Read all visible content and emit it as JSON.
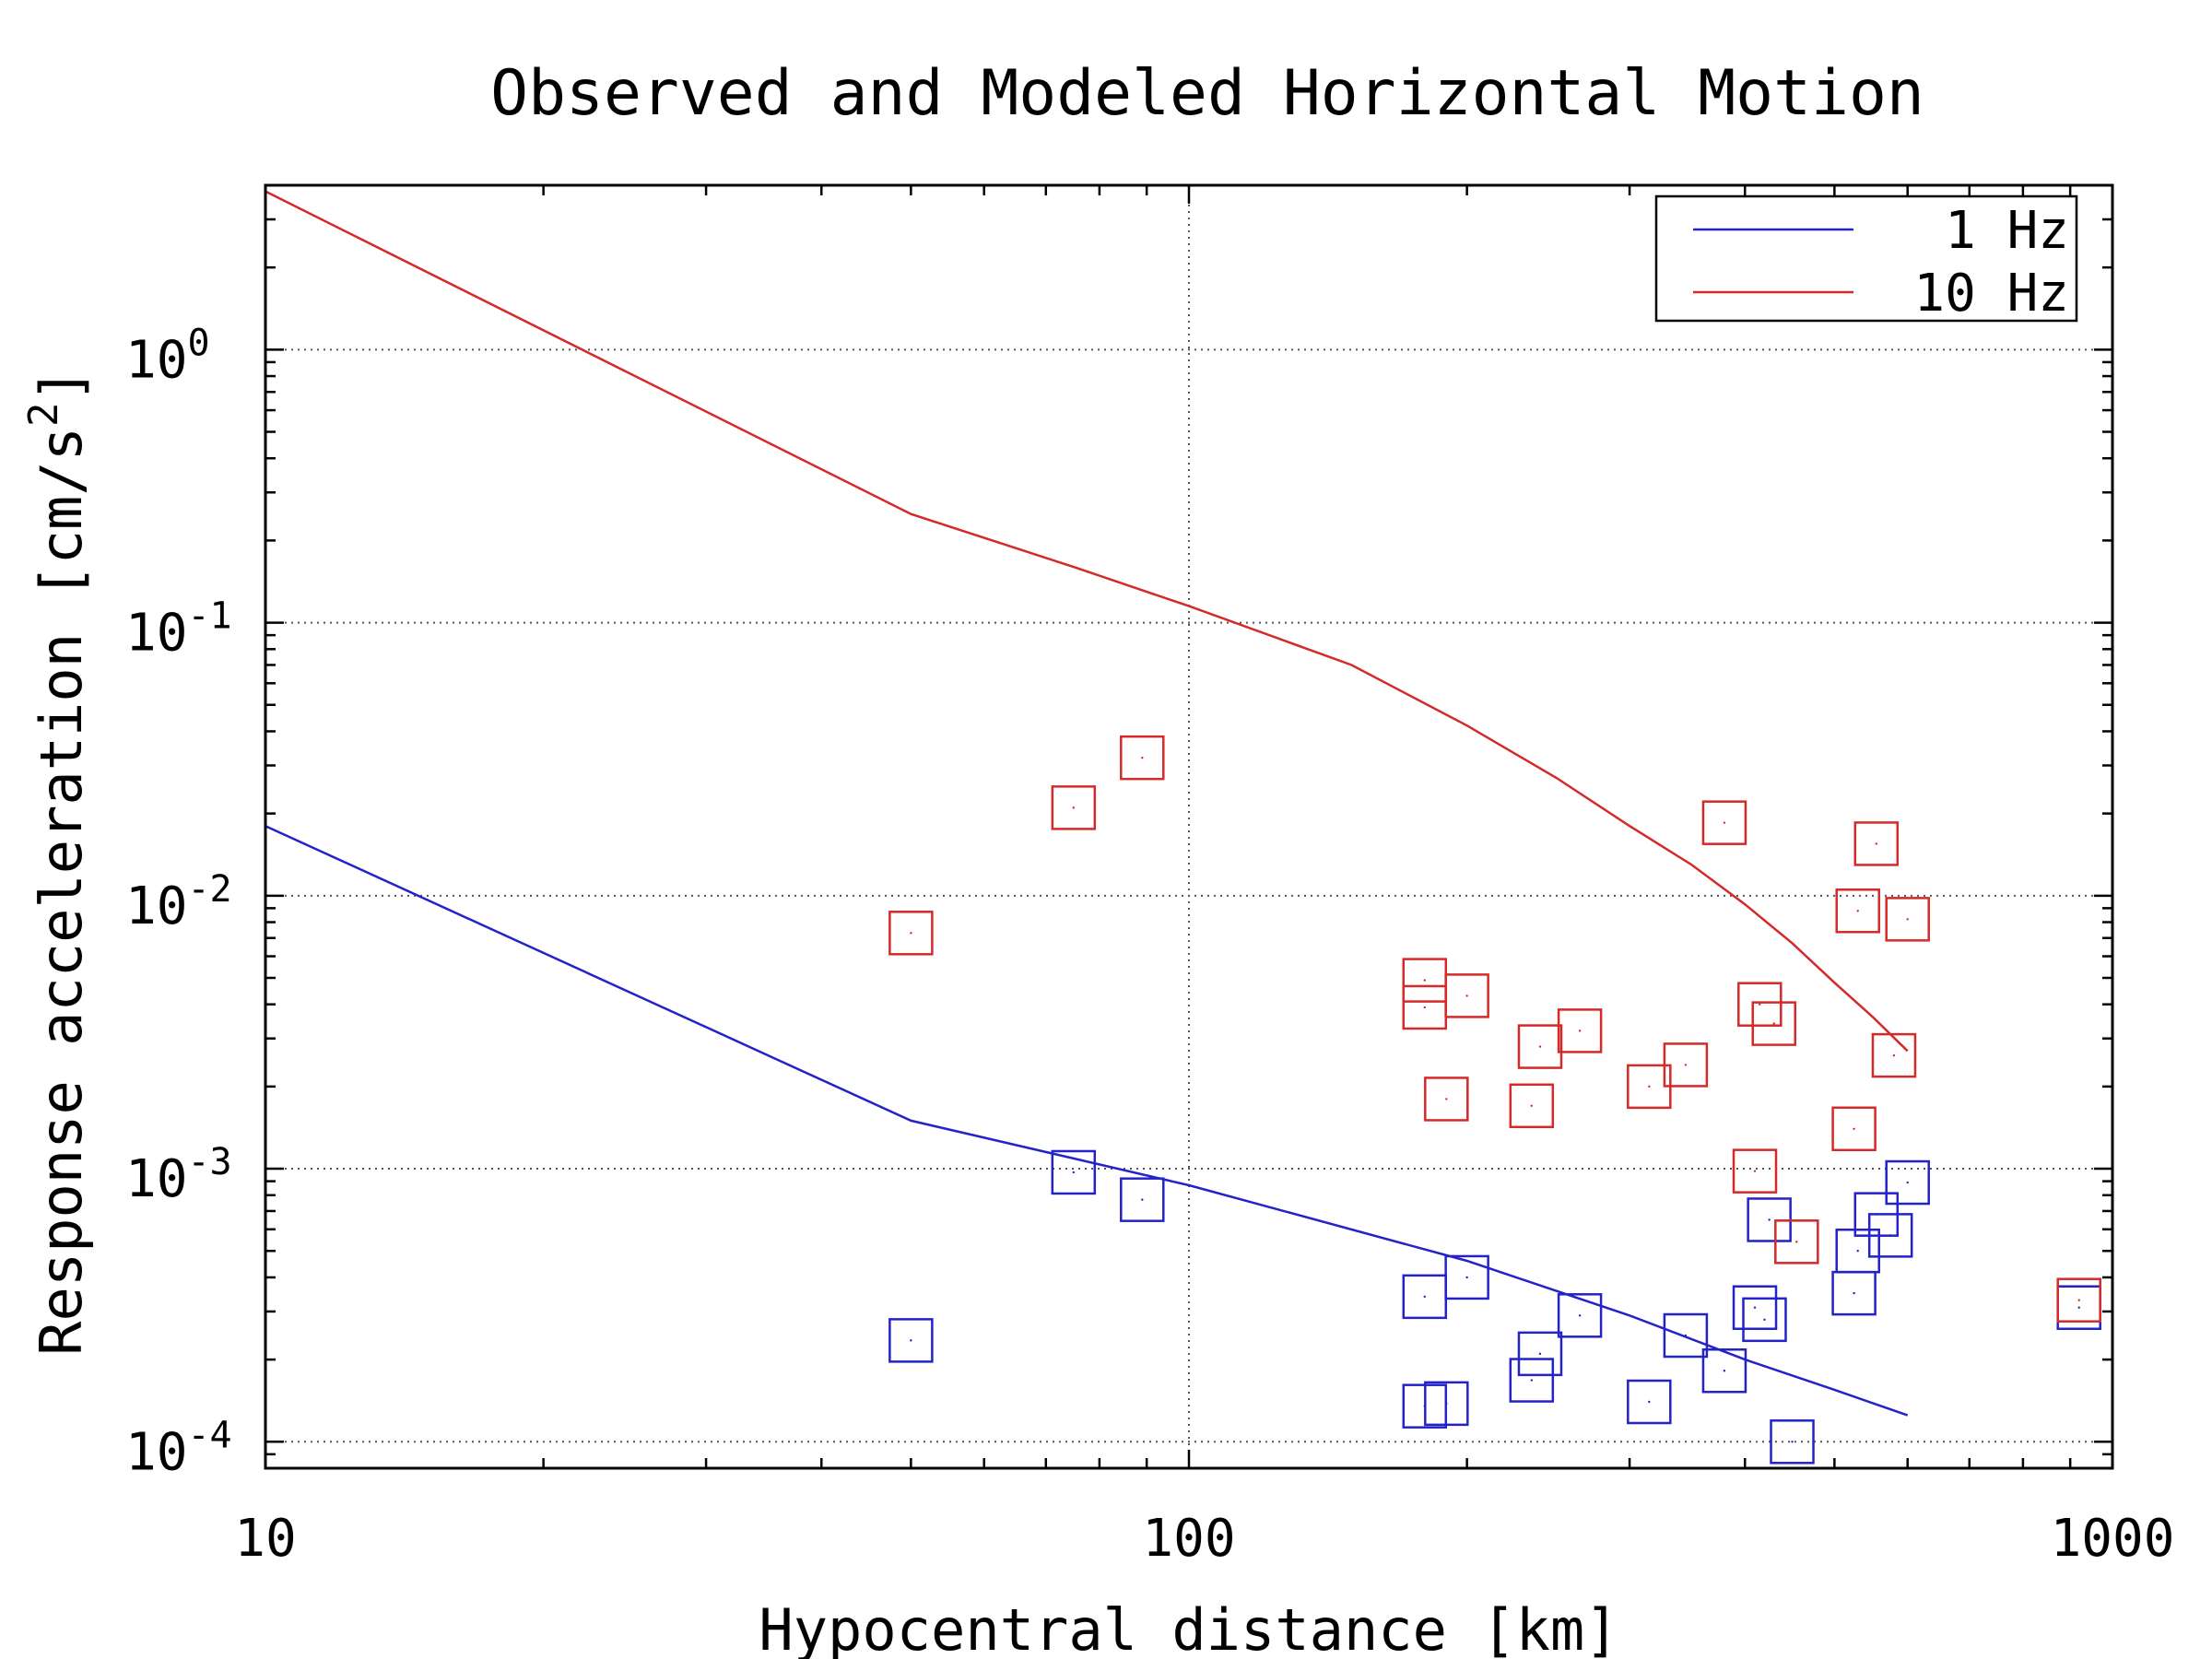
{
  "chart_data": {
    "type": "scatter",
    "title": "Observed and Modeled Horizontal Motion",
    "xlabel": "Hypocentral distance [km]",
    "ylabel_text": "Response acceleration [cm/s",
    "ylabel_exp": "2",
    "ylabel_close": "]",
    "x_scale": "log",
    "y_scale": "log",
    "xlim": [
      10,
      1000
    ],
    "ylim": [
      8e-05,
      4.0
    ],
    "grid": true,
    "legend_position": "top-right",
    "x_ticks": [
      {
        "value": 10,
        "label": "10"
      },
      {
        "value": 100,
        "label": "100"
      },
      {
        "value": 1000,
        "label": "1000"
      }
    ],
    "y_ticks": [
      {
        "value": 1,
        "base": "10",
        "exp": "0"
      },
      {
        "value": 0.1,
        "base": "10",
        "exp": "-1"
      },
      {
        "value": 0.01,
        "base": "10",
        "exp": "-2"
      },
      {
        "value": 0.001,
        "base": "10",
        "exp": "-3"
      },
      {
        "value": 0.0001,
        "base": "10",
        "exp": "-4"
      }
    ],
    "series": [
      {
        "name": "1 Hz",
        "color": "#2323c8",
        "line": [
          [
            10,
            0.018
          ],
          [
            50,
            0.0015
          ],
          [
            100,
            0.00087
          ],
          [
            200,
            0.00046
          ],
          [
            300,
            0.00029
          ],
          [
            400,
            0.0002
          ],
          [
            500,
            0.000155
          ],
          [
            600,
            0.000125
          ]
        ],
        "points": [
          [
            50,
            0.000235
          ],
          [
            75,
            0.00097
          ],
          [
            89,
            0.00077
          ],
          [
            180,
            0.00034
          ],
          [
            180,
            0.000135
          ],
          [
            190,
            0.000138
          ],
          [
            200,
            0.0004
          ],
          [
            235,
            0.000168
          ],
          [
            240,
            0.00021
          ],
          [
            265,
            0.00029
          ],
          [
            315,
            0.00014
          ],
          [
            345,
            0.000245
          ],
          [
            380,
            0.000182
          ],
          [
            410,
            0.00031
          ],
          [
            420,
            0.00028
          ],
          [
            425,
            0.00065
          ],
          [
            450,
            0.0001
          ],
          [
            525,
            0.00035
          ],
          [
            530,
            0.0005
          ],
          [
            555,
            0.00068
          ],
          [
            575,
            0.00057
          ],
          [
            600,
            0.00089
          ],
          [
            920,
            0.00031
          ]
        ]
      },
      {
        "name": "10 Hz",
        "color": "#d42a2a",
        "line": [
          [
            10,
            3.8
          ],
          [
            50,
            0.25
          ],
          [
            75,
            0.16
          ],
          [
            100,
            0.115
          ],
          [
            150,
            0.07
          ],
          [
            200,
            0.042
          ],
          [
            250,
            0.027
          ],
          [
            300,
            0.018
          ],
          [
            350,
            0.013
          ],
          [
            400,
            0.0093
          ],
          [
            450,
            0.0067
          ],
          [
            500,
            0.0048
          ],
          [
            550,
            0.0036
          ],
          [
            600,
            0.0027
          ]
        ],
        "points": [
          [
            50,
            0.0073
          ],
          [
            75,
            0.021
          ],
          [
            89,
            0.032
          ],
          [
            180,
            0.0049
          ],
          [
            180,
            0.0039
          ],
          [
            190,
            0.0018
          ],
          [
            200,
            0.0043
          ],
          [
            235,
            0.0017
          ],
          [
            240,
            0.0028
          ],
          [
            265,
            0.0032
          ],
          [
            315,
            0.002
          ],
          [
            345,
            0.0024
          ],
          [
            380,
            0.0185
          ],
          [
            410,
            0.00098
          ],
          [
            415,
            0.004
          ],
          [
            430,
            0.0034
          ],
          [
            455,
            0.00054
          ],
          [
            525,
            0.0014
          ],
          [
            530,
            0.0088
          ],
          [
            555,
            0.0155
          ],
          [
            580,
            0.0026
          ],
          [
            600,
            0.0082
          ],
          [
            920,
            0.00033
          ]
        ]
      }
    ]
  }
}
